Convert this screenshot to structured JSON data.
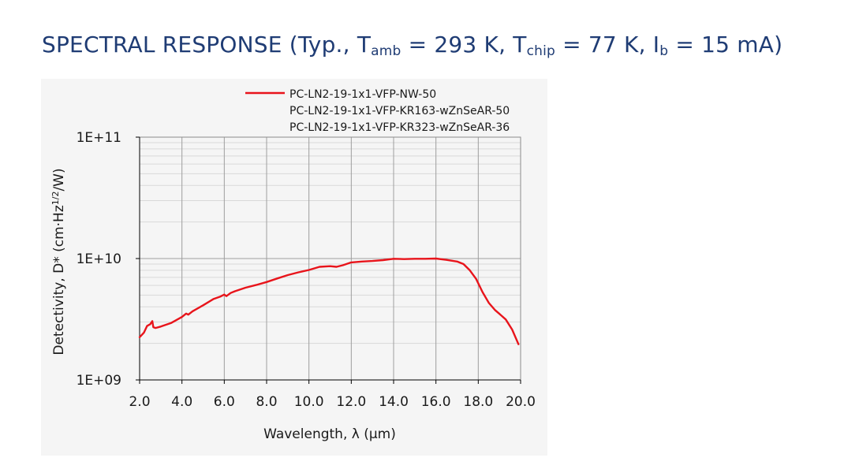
{
  "page": {
    "title": {
      "prefix": "SPECTRAL RESPONSE (Typ., T",
      "sub1": "amb",
      "mid1": " = 293 K, T",
      "sub2": "chip",
      "mid2": " = 77 K, I",
      "sub3": "b",
      "suffix": " = 15 mA)"
    },
    "title_color": "#1f3c74"
  },
  "chart_data": {
    "type": "line",
    "title": "",
    "xlabel": "Wavelength, λ (µm)",
    "ylabel": "Detectivity, D* (cm·Hz1/2/W)",
    "ylabel_parts": {
      "base": "Detectivity, D* (cm·Hz",
      "sup": "1/2",
      "tail": "/W)"
    },
    "xlim": [
      2.0,
      20.0
    ],
    "ylim": [
      1000000000.0,
      100000000000.0
    ],
    "yscale": "log",
    "grid": true,
    "legend_position": "top",
    "x_ticks": [
      2,
      4,
      6,
      8,
      10,
      12,
      14,
      16,
      18,
      20
    ],
    "x_tick_labels": [
      "2.0",
      "4.0",
      "6.0",
      "8.0",
      "10.0",
      "12.0",
      "14.0",
      "16.0",
      "18.0",
      "20.0"
    ],
    "y_ticks": [
      1000000000.0,
      10000000000.0,
      100000000000.0
    ],
    "y_tick_labels": [
      "1E+09",
      "1E+10",
      "1E+11"
    ],
    "series": [
      {
        "name": "PC-LN2-19-1x1-VFP-NW-50",
        "color": "#e8141b",
        "visible": true,
        "x": [
          2.0,
          2.2,
          2.35,
          2.5,
          2.6,
          2.65,
          2.75,
          3.0,
          3.5,
          4.0,
          4.2,
          4.3,
          4.5,
          5.0,
          5.5,
          5.8,
          6.0,
          6.1,
          6.3,
          6.5,
          7.0,
          7.5,
          8.0,
          8.5,
          9.0,
          9.5,
          10.0,
          10.5,
          11.0,
          11.3,
          11.6,
          12.0,
          12.5,
          13.0,
          13.5,
          14.0,
          14.5,
          15.0,
          15.5,
          16.0,
          16.5,
          17.0,
          17.3,
          17.6,
          17.9,
          18.2,
          18.5,
          18.8,
          19.0,
          19.3,
          19.6,
          19.9
        ],
        "y": [
          2250000000.0,
          2450000000.0,
          2780000000.0,
          2880000000.0,
          3050000000.0,
          2720000000.0,
          2680000000.0,
          2750000000.0,
          2950000000.0,
          3300000000.0,
          3520000000.0,
          3450000000.0,
          3680000000.0,
          4120000000.0,
          4650000000.0,
          4850000000.0,
          5050000000.0,
          4900000000.0,
          5200000000.0,
          5380000000.0,
          5750000000.0,
          6050000000.0,
          6400000000.0,
          6850000000.0,
          7300000000.0,
          7700000000.0,
          8050000000.0,
          8550000000.0,
          8650000000.0,
          8550000000.0,
          8800000000.0,
          9300000000.0,
          9450000000.0,
          9550000000.0,
          9700000000.0,
          9950000000.0,
          9900000000.0,
          9950000000.0,
          9950000000.0,
          10000000000.0,
          9750000000.0,
          9450000000.0,
          9000000000.0,
          8000000000.0,
          6800000000.0,
          5300000000.0,
          4300000000.0,
          3750000000.0,
          3500000000.0,
          3150000000.0,
          2600000000.0,
          1970000000.0
        ]
      },
      {
        "name": "PC-LN2-19-1x1-VFP-KR163-wZnSeAR-50",
        "visible": false,
        "x": [],
        "y": []
      },
      {
        "name": "PC-LN2-19-1x1-VFP-KR323-wZnSeAR-36",
        "visible": false,
        "x": [],
        "y": []
      }
    ]
  }
}
